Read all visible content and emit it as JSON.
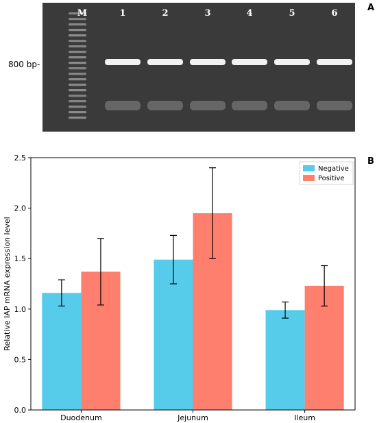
{
  "panel_a": {
    "letter": "A",
    "marker_label": "M",
    "lane_labels": [
      "1",
      "2",
      "3",
      "4",
      "5",
      "6"
    ],
    "size_label": "800 bp-"
  },
  "panel_b": {
    "letter": "B"
  },
  "colors": {
    "negative": "#56CCEA",
    "positive": "#FF7F6E",
    "gel_background": "#3a3a3a",
    "band": "#f2f2f2"
  },
  "chart_data": {
    "type": "bar",
    "title": "",
    "xlabel": "",
    "ylabel": "Relative IAP mRNA expression level",
    "ylim": [
      0,
      2.5
    ],
    "yticks": [
      "0.0",
      "0.5",
      "1.0",
      "1.5",
      "2.0",
      "2.5"
    ],
    "categories": [
      "Duodenum",
      "Jejunum",
      "Ileum"
    ],
    "legend_position": "top-right",
    "grid": false,
    "series": [
      {
        "name": "Negative",
        "values": [
          1.16,
          1.49,
          0.99
        ],
        "errors": [
          0.13,
          0.24,
          0.08
        ]
      },
      {
        "name": "Positive",
        "values": [
          1.37,
          1.95,
          1.23
        ],
        "errors": [
          0.33,
          0.45,
          0.2
        ]
      }
    ]
  }
}
